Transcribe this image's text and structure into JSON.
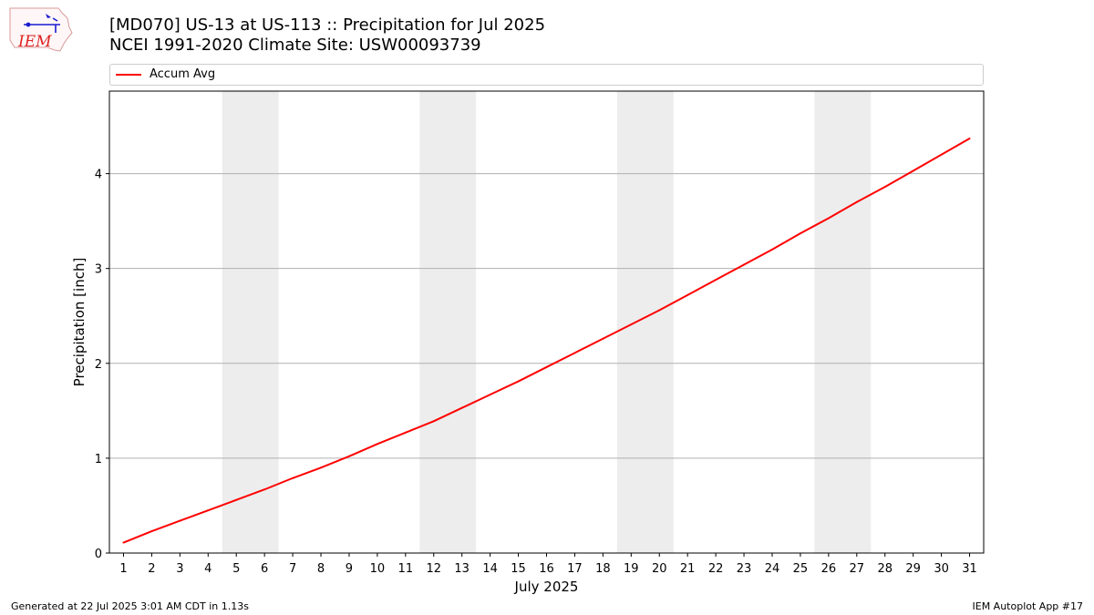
{
  "header": {
    "title_line1": "[MD070] US-13 at US-113  :: Precipitation for Jul 2025",
    "title_line2": "NCEI 1991-2020 Climate Site: USW00093739",
    "logo_text": "IEM"
  },
  "footer": {
    "generated": "Generated at 22 Jul 2025 3:01 AM CDT in 1.13s",
    "app": "IEM Autoplot App #17"
  },
  "colors": {
    "series": "#ff0000",
    "weekend_band": "#ededed",
    "grid": "#b0b0b0"
  },
  "chart_data": {
    "type": "line",
    "title": "[MD070] US-13 at US-113  :: Precipitation for Jul 2025",
    "subtitle": "NCEI 1991-2020 Climate Site: USW00093739",
    "xlabel": "July 2025",
    "ylabel": "Precipitation [inch]",
    "x": [
      1,
      2,
      3,
      4,
      5,
      6,
      7,
      8,
      9,
      10,
      11,
      12,
      13,
      14,
      15,
      16,
      17,
      18,
      19,
      20,
      21,
      22,
      23,
      24,
      25,
      26,
      27,
      28,
      29,
      30,
      31
    ],
    "series": [
      {
        "name": "Accum Avg",
        "color": "#ff0000",
        "values": [
          0.11,
          0.23,
          0.34,
          0.45,
          0.56,
          0.67,
          0.79,
          0.9,
          1.02,
          1.15,
          1.27,
          1.39,
          1.53,
          1.67,
          1.81,
          1.96,
          2.11,
          2.26,
          2.41,
          2.56,
          2.72,
          2.88,
          3.04,
          3.2,
          3.37,
          3.53,
          3.7,
          3.86,
          4.03,
          4.2,
          4.37
        ]
      }
    ],
    "xticks": [
      "1",
      "2",
      "3",
      "4",
      "5",
      "6",
      "7",
      "8",
      "9",
      "10",
      "11",
      "12",
      "13",
      "14",
      "15",
      "16",
      "17",
      "18",
      "19",
      "20",
      "21",
      "22",
      "23",
      "24",
      "25",
      "26",
      "27",
      "28",
      "29",
      "30",
      "31"
    ],
    "yticks": [
      "0",
      "1",
      "2",
      "3",
      "4"
    ],
    "xlim": [
      0.5,
      31.5
    ],
    "ylim": [
      0,
      4.87
    ],
    "weekend_bands": [
      [
        4.5,
        6.5
      ],
      [
        11.5,
        13.5
      ],
      [
        18.5,
        20.5
      ],
      [
        25.5,
        27.5
      ]
    ],
    "grid": "y-major",
    "legend_position": "top, above plot"
  }
}
